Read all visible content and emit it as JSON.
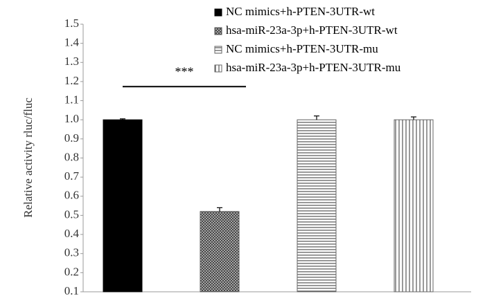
{
  "chart_data": {
    "type": "bar",
    "y_label": "Relative activity rluc/fluc",
    "annotation": "***",
    "series": [
      {
        "name": "NC mimics+h-PTEN-3UTR-wt",
        "color": "#000000",
        "pattern": "solid",
        "values": [
          1.0
        ],
        "errors": [
          0.005
        ]
      },
      {
        "name": "hsa-miR-23a-3p+h-PTEN-3UTR-wt",
        "color": "#555555",
        "pattern": "crosshatch",
        "values": [
          0.52
        ],
        "errors": [
          0.02
        ]
      },
      {
        "name": "NC mimics+h-PTEN-3UTR-mu",
        "color": "#666666",
        "pattern": "horizontal",
        "values": [
          1.0
        ],
        "errors": [
          0.02
        ]
      },
      {
        "name": "hsa-miR-23a-3p+h-PTEN-3UTR-mu",
        "color": "#666666",
        "pattern": "vertical",
        "values": [
          1.0
        ],
        "errors": [
          0.015
        ]
      }
    ],
    "ylim": [
      0.1,
      1.5
    ],
    "yticks": [
      0.1,
      0.2,
      0.3,
      0.4,
      0.5,
      0.6,
      0.7,
      0.8,
      0.9,
      {
        "value": 1,
        "label": "1.0"
      },
      1.1,
      1.2,
      1.3,
      1.4,
      1.5
    ],
    "grid": false
  }
}
